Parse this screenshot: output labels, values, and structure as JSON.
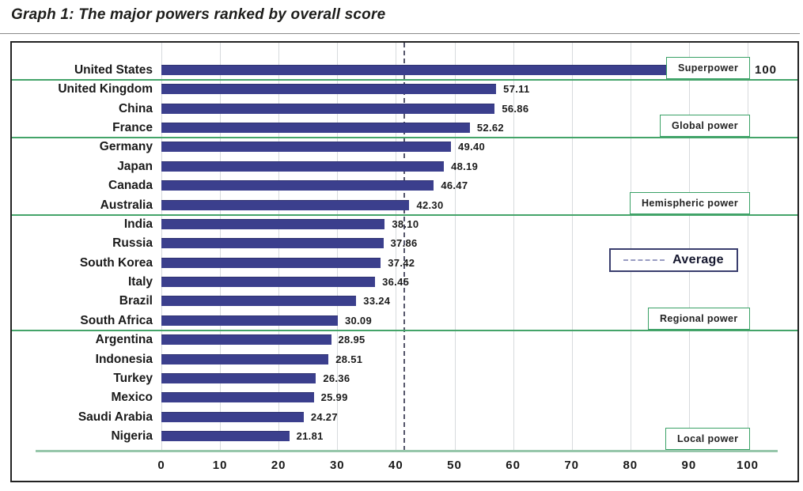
{
  "title": "Graph 1: The major powers ranked by overall score",
  "legend": {
    "average_label": "Average"
  },
  "chart_data": {
    "type": "bar",
    "orientation": "horizontal",
    "title": "Graph 1: The major powers ranked by overall score",
    "xlabel": "",
    "ylabel": "",
    "xlim": [
      0,
      100
    ],
    "grid": true,
    "x_ticks": [
      "0",
      "10",
      "20",
      "30",
      "40",
      "50",
      "60",
      "70",
      "80",
      "90",
      "100"
    ],
    "x_tick_values": [
      0,
      10,
      20,
      30,
      40,
      50,
      60,
      70,
      80,
      90,
      100
    ],
    "average": {
      "label": "Average",
      "value": 41.3,
      "line_style": "dashed"
    },
    "categories": [
      "United States",
      "United Kingdom",
      "China",
      "France",
      "Germany",
      "Japan",
      "Canada",
      "Australia",
      "India",
      "Russia",
      "South Korea",
      "Italy",
      "Brazil",
      "South Africa",
      "Argentina",
      "Indonesia",
      "Turkey",
      "Mexico",
      "Saudi Arabia",
      "Nigeria"
    ],
    "values": [
      100,
      57.11,
      56.86,
      52.62,
      49.4,
      48.19,
      46.47,
      42.3,
      38.1,
      37.86,
      37.42,
      36.45,
      33.24,
      30.09,
      28.95,
      28.51,
      26.36,
      25.99,
      24.27,
      21.81
    ],
    "value_labels": [
      "100",
      "57.11",
      "56.86",
      "52.62",
      "49.40",
      "48.19",
      "46.47",
      "42.30",
      "38.10",
      "37.86",
      "37.42",
      "36.45",
      "33.24",
      "30.09",
      "28.95",
      "28.51",
      "26.36",
      "25.99",
      "24.27",
      "21.81"
    ],
    "tiers": [
      {
        "label": "Superpower",
        "last_row": 0
      },
      {
        "label": "Global power",
        "last_row": 3
      },
      {
        "label": "Hemispheric power",
        "last_row": 7
      },
      {
        "label": "Regional power",
        "last_row": 13
      },
      {
        "label": "Local power",
        "last_row": 19
      }
    ],
    "bar_color": "#3b3f8d",
    "tier_line_color": "#44a469",
    "axis_line_color": "#97c7ab",
    "average_line_color": "#55566b"
  }
}
